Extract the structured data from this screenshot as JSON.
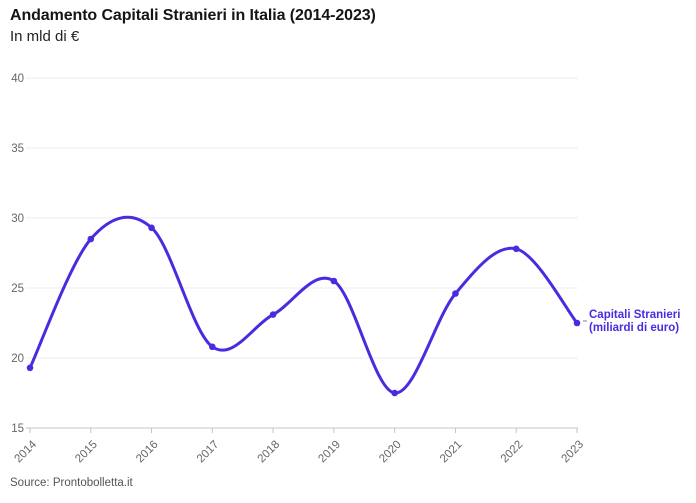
{
  "header": {
    "title": "Andamento Capitali Stranieri in Italia (2014-2023)",
    "subtitle": "In mld di €"
  },
  "series_label": {
    "line1": "Capitali Stranieri",
    "line2": "(miliardi di euro)"
  },
  "footer": {
    "source": "Source: Prontobolletta.it"
  },
  "colors": {
    "accent": "#4A2BE0",
    "grid": "#ECECEC",
    "axis": "#C4C4C4",
    "tick_text": "#666666",
    "title_text": "#151515",
    "subtitle_text": "#222222",
    "source_text": "#555555",
    "connector": "#999999",
    "background": "#FFFFFF"
  },
  "chart_data": {
    "type": "line",
    "title": "Andamento Capitali Stranieri in Italia (2014-2023)",
    "subtitle": "In mld di €",
    "x": [
      2014,
      2015,
      2016,
      2017,
      2018,
      2019,
      2020,
      2021,
      2022,
      2023
    ],
    "series": [
      {
        "name": "Capitali Stranieri (miliardi di euro)",
        "values": [
          19.3,
          28.5,
          29.3,
          20.8,
          23.1,
          25.5,
          17.5,
          24.6,
          27.8,
          22.5
        ]
      }
    ],
    "xlabel": "",
    "ylabel": "",
    "ylim": [
      15,
      40
    ],
    "yticks": [
      15,
      20,
      25,
      30,
      35,
      40
    ],
    "grid": "horizontal",
    "curve": "smooth",
    "markers": true,
    "legend_position": "end-of-line-right",
    "x_tick_rotation": -45,
    "source": "Source: Prontobolletta.it"
  }
}
